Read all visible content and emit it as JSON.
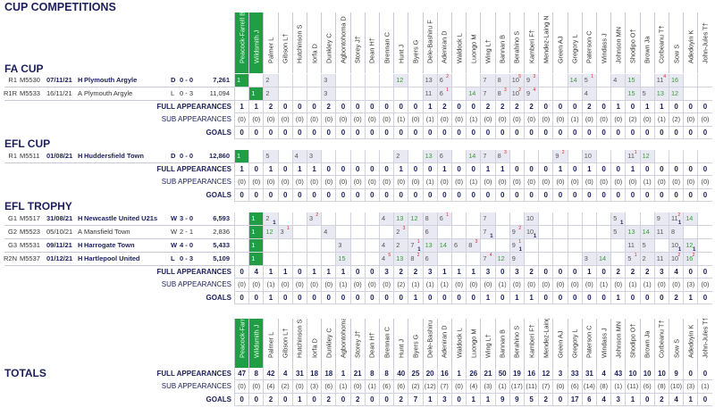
{
  "title": "CUP COMPETITIONS",
  "colors": {
    "navy": "#1c1f5c",
    "keeper_green": "#1f9e46",
    "sub_green": "#3a9a3a",
    "note_red": "#d22222",
    "cell_fill": "#e9e9f3"
  },
  "row_labels": {
    "full": "FULL APPEARANCES",
    "sub": "SUB APPEARANCES",
    "goals": "GOALS"
  },
  "players": [
    "Peacock-Farrell B†",
    "Wildsmith J",
    "Palmer L",
    "Gibson L†",
    "Hutchinson S",
    "Iorfa D",
    "Dunkley C",
    "Agbontohoma D",
    "Storey J†",
    "Dean H†",
    "Brennan C",
    "Hunt J",
    "Byers G",
    "Dele-Bashiru F",
    "Adeniran D",
    "Waldock L",
    "Luongo M",
    "Wing L†",
    "Bannan B",
    "Berahino S",
    "Kamberi F†",
    "Mendez-Laing N",
    "Green AJ",
    "Gregory L",
    "Paterson C",
    "Windass J",
    "Johnson MN",
    "Shodipo O†",
    "Brown Ja",
    "Corbeanu T†",
    "Sow S",
    "Adedoyin K",
    "John-Jules T†"
  ],
  "goalkeepers": [
    "Peacock-Farrell B†",
    "Wildsmith J"
  ],
  "sections": [
    {
      "title": "FA CUP",
      "matches": [
        {
          "round": "R1",
          "code": "M5530",
          "date": "07/11/21",
          "venue": "H",
          "opponent": "Plymouth Argyle",
          "result": "D",
          "score": "0 - 0",
          "attendance": "7,261",
          "cells": [
            {
              "player": "Peacock-Farrell B†",
              "n": "1"
            },
            {
              "player": "Palmer L",
              "n": "2"
            },
            {
              "player": "Dunkley C",
              "n": "3"
            },
            {
              "player": "Hunt J",
              "n": "12",
              "sub": true
            },
            {
              "player": "Dele-Bashiru F",
              "n": "13"
            },
            {
              "player": "Adeniran D",
              "n": "6",
              "note": "2"
            },
            {
              "player": "Wing L†",
              "n": "7"
            },
            {
              "player": "Bannan B",
              "n": "8"
            },
            {
              "player": "Berahino S",
              "n": "10",
              "note": "5"
            },
            {
              "player": "Kamberi F†",
              "n": "9",
              "note": "3"
            },
            {
              "player": "Gregory L",
              "n": "14",
              "sub": true
            },
            {
              "player": "Paterson C",
              "n": "5",
              "note": "1"
            },
            {
              "player": "Johnson MN",
              "n": "4"
            },
            {
              "player": "Shodipo O†",
              "n": "15",
              "sub": true
            },
            {
              "player": "Corbeanu T†",
              "n": "11",
              "note": "4"
            },
            {
              "player": "Sow S",
              "n": "16",
              "sub": true
            }
          ]
        },
        {
          "round": "R1R",
          "code": "M5533",
          "date": "16/11/21",
          "venue": "A",
          "opponent": "Plymouth Argyle",
          "result": "L",
          "score": "0 - 3",
          "attendance": "11,094",
          "cells": [
            {
              "player": "Wildsmith J",
              "n": "1"
            },
            {
              "player": "Palmer L",
              "n": "2"
            },
            {
              "player": "Dunkley C",
              "n": "3"
            },
            {
              "player": "Dele-Bashiru F",
              "n": "11"
            },
            {
              "player": "Adeniran D",
              "n": "6",
              "note": "1"
            },
            {
              "player": "Luongo M",
              "n": "14",
              "sub": true
            },
            {
              "player": "Wing L†",
              "n": "7"
            },
            {
              "player": "Bannan B",
              "n": "8",
              "note": "3"
            },
            {
              "player": "Berahino S",
              "n": "10",
              "note": "2"
            },
            {
              "player": "Kamberi F†",
              "n": "9",
              "note": "4"
            },
            {
              "player": "Paterson C",
              "n": "4"
            },
            {
              "player": "Shodipo O†",
              "n": "15",
              "sub": true
            },
            {
              "player": "Brown Ja",
              "n": "5"
            },
            {
              "player": "Corbeanu T†",
              "n": "13",
              "sub": true
            },
            {
              "player": "Sow S",
              "n": "12",
              "sub": true
            }
          ]
        }
      ],
      "full": [
        1,
        1,
        2,
        0,
        0,
        0,
        2,
        0,
        0,
        0,
        0,
        0,
        0,
        1,
        2,
        0,
        0,
        2,
        2,
        2,
        2,
        0,
        0,
        0,
        2,
        0,
        1,
        0,
        1,
        1,
        0,
        0,
        0
      ],
      "sub": [
        0,
        0,
        0,
        0,
        0,
        0,
        0,
        0,
        0,
        0,
        0,
        1,
        0,
        1,
        0,
        0,
        1,
        0,
        0,
        0,
        0,
        0,
        0,
        1,
        0,
        0,
        0,
        2,
        0,
        1,
        2,
        0,
        0
      ],
      "goals": [
        0,
        0,
        0,
        0,
        0,
        0,
        0,
        0,
        0,
        0,
        0,
        0,
        0,
        0,
        0,
        0,
        0,
        0,
        0,
        0,
        0,
        0,
        0,
        0,
        0,
        0,
        0,
        0,
        0,
        0,
        0,
        0,
        0
      ]
    },
    {
      "title": "EFL CUP",
      "matches": [
        {
          "round": "R1",
          "code": "M5511",
          "date": "01/08/21",
          "venue": "H",
          "opponent": "Huddersfield Town",
          "result": "D",
          "score": "0 - 0",
          "attendance": "12,860",
          "cells": [
            {
              "player": "Peacock-Farrell B†",
              "n": "1"
            },
            {
              "player": "Palmer L",
              "n": "5"
            },
            {
              "player": "Hutchinson S",
              "n": "4"
            },
            {
              "player": "Iorfa D",
              "n": "3"
            },
            {
              "player": "Hunt J",
              "n": "2"
            },
            {
              "player": "Dele-Bashiru F",
              "n": "13",
              "sub": true
            },
            {
              "player": "Adeniran D",
              "n": "6"
            },
            {
              "player": "Luongo M",
              "n": "14",
              "sub": true
            },
            {
              "player": "Wing L†",
              "n": "7"
            },
            {
              "player": "Bannan B",
              "n": "8",
              "note": "3"
            },
            {
              "player": "Green AJ",
              "n": "9",
              "note": "2"
            },
            {
              "player": "Paterson C",
              "n": "10"
            },
            {
              "player": "Shodipo O†",
              "n": "11",
              "note": "1"
            },
            {
              "player": "Brown Ja",
              "n": "12",
              "sub": true
            }
          ]
        }
      ],
      "full": [
        1,
        0,
        1,
        0,
        1,
        1,
        0,
        0,
        0,
        0,
        0,
        1,
        0,
        0,
        1,
        0,
        0,
        1,
        1,
        0,
        0,
        0,
        1,
        0,
        1,
        0,
        0,
        1,
        0,
        0,
        0,
        0,
        0
      ],
      "sub": [
        0,
        0,
        0,
        0,
        0,
        0,
        0,
        0,
        0,
        0,
        0,
        0,
        0,
        1,
        0,
        0,
        1,
        0,
        0,
        0,
        0,
        0,
        0,
        0,
        0,
        0,
        0,
        0,
        1,
        0,
        0,
        0,
        0
      ],
      "goals": [
        0,
        0,
        0,
        0,
        0,
        0,
        0,
        0,
        0,
        0,
        0,
        0,
        0,
        0,
        0,
        0,
        0,
        0,
        0,
        0,
        0,
        0,
        0,
        0,
        0,
        0,
        0,
        0,
        0,
        0,
        0,
        0,
        0
      ]
    },
    {
      "title": "EFL TROPHY",
      "matches": [
        {
          "round": "G1",
          "code": "M5517",
          "date": "31/08/21",
          "venue": "H",
          "opponent": "Newcastle United U21s",
          "result": "W",
          "score": "3 - 0",
          "attendance": "6,593",
          "cells": [
            {
              "player": "Wildsmith J",
              "n": "1"
            },
            {
              "player": "Palmer L",
              "n": "2",
              "goals": "1"
            },
            {
              "player": "Iorfa D",
              "n": "3",
              "note": "2"
            },
            {
              "player": "Brennan C",
              "n": "4"
            },
            {
              "player": "Hunt J",
              "n": "13",
              "sub": true
            },
            {
              "player": "Byers G",
              "n": "12",
              "sub": true
            },
            {
              "player": "Dele-Bashiru F",
              "n": "8"
            },
            {
              "player": "Adeniran D",
              "n": "6",
              "note": "1"
            },
            {
              "player": "Wing L†",
              "n": "7"
            },
            {
              "player": "Kamberi F†",
              "n": "10"
            },
            {
              "player": "Johnson MN",
              "n": "5",
              "goals": "1"
            },
            {
              "player": "Corbeanu T†",
              "n": "9"
            },
            {
              "player": "Sow S",
              "n": "11",
              "note": "2",
              "goals": "1"
            },
            {
              "player": "Adedoyin K",
              "n": "14",
              "sub": true
            }
          ]
        },
        {
          "round": "G2",
          "code": "M5523",
          "date": "05/10/21",
          "venue": "A",
          "opponent": "Mansfield Town",
          "result": "W",
          "score": "2 - 1",
          "attendance": "2,836",
          "cells": [
            {
              "player": "Wildsmith J",
              "n": "1"
            },
            {
              "player": "Palmer L",
              "n": "12",
              "sub": true
            },
            {
              "player": "Gibson L†",
              "n": "3",
              "note": "1"
            },
            {
              "player": "Dunkley C",
              "n": "4"
            },
            {
              "player": "Hunt J",
              "n": "2",
              "note": "3"
            },
            {
              "player": "Dele-Bashiru F",
              "n": "6"
            },
            {
              "player": "Wing L†",
              "n": "7",
              "goals": "1"
            },
            {
              "player": "Berahino S",
              "n": "9",
              "note": "2"
            },
            {
              "player": "Kamberi F†",
              "n": "10",
              "goals": "1"
            },
            {
              "player": "Johnson MN",
              "n": "5"
            },
            {
              "player": "Shodipo O†",
              "n": "13",
              "sub": true
            },
            {
              "player": "Brown Ja",
              "n": "14",
              "sub": true
            },
            {
              "player": "Corbeanu T†",
              "n": "11"
            },
            {
              "player": "Sow S",
              "n": "8"
            }
          ]
        },
        {
          "round": "G3",
          "code": "M5531",
          "date": "09/11/21",
          "venue": "H",
          "opponent": "Harrogate Town",
          "result": "W",
          "score": "4 - 0",
          "attendance": "5,433",
          "cells": [
            {
              "player": "Wildsmith J",
              "n": "1"
            },
            {
              "player": "Agbontohoma D",
              "n": "3"
            },
            {
              "player": "Brennan C",
              "n": "4"
            },
            {
              "player": "Hunt J",
              "n": "2"
            },
            {
              "player": "Byers G",
              "n": "7",
              "note": "1",
              "goals": "1"
            },
            {
              "player": "Dele-Bashiru F",
              "n": "13",
              "sub": true
            },
            {
              "player": "Adeniran D",
              "n": "14",
              "sub": true
            },
            {
              "player": "Waldock L",
              "n": "6"
            },
            {
              "player": "Luongo M",
              "n": "8",
              "note": "3"
            },
            {
              "player": "Berahino S",
              "n": "9",
              "note": "1",
              "goals": "1"
            },
            {
              "player": "Shodipo O†",
              "n": "11"
            },
            {
              "player": "Brown Ja",
              "n": "5"
            },
            {
              "player": "Sow S",
              "n": "10",
              "goals": "1"
            },
            {
              "player": "Adedoyin K",
              "n": "12",
              "sub": true,
              "goals": "1"
            }
          ]
        },
        {
          "round": "R2N",
          "code": "M5537",
          "date": "01/12/21",
          "venue": "H",
          "opponent": "Hartlepool United",
          "result": "L",
          "score": "0 - 3",
          "attendance": "5,109",
          "cells": [
            {
              "player": "Wildsmith J",
              "n": "1"
            },
            {
              "player": "Agbontohoma D",
              "n": "15",
              "sub": true
            },
            {
              "player": "Brennan C",
              "n": "4",
              "note": "5"
            },
            {
              "player": "Hunt J",
              "n": "13",
              "sub": true
            },
            {
              "player": "Byers G",
              "n": "8",
              "note": "2"
            },
            {
              "player": "Dele-Bashiru F",
              "n": "6"
            },
            {
              "player": "Wing L†",
              "n": "7",
              "note": "4"
            },
            {
              "player": "Bannan B",
              "n": "12",
              "sub": true
            },
            {
              "player": "Berahino S",
              "n": "9"
            },
            {
              "player": "Paterson C",
              "n": "3"
            },
            {
              "player": "Windass J",
              "n": "14",
              "sub": true
            },
            {
              "player": "Shodipo O†",
              "n": "5",
              "note": "1"
            },
            {
              "player": "Brown Ja",
              "n": "2"
            },
            {
              "player": "Corbeanu T†",
              "n": "11"
            },
            {
              "player": "Sow S",
              "n": "10",
              "note": "2"
            },
            {
              "player": "Adedoyin K",
              "n": "16",
              "note": "2",
              "sub": true
            }
          ]
        }
      ],
      "full": [
        0,
        4,
        1,
        1,
        0,
        1,
        1,
        1,
        0,
        0,
        3,
        2,
        2,
        3,
        1,
        1,
        1,
        3,
        0,
        3,
        2,
        0,
        0,
        0,
        1,
        0,
        2,
        2,
        2,
        3,
        4,
        0,
        0
      ],
      "sub": [
        0,
        0,
        1,
        0,
        0,
        0,
        0,
        1,
        0,
        0,
        0,
        2,
        1,
        1,
        1,
        0,
        0,
        0,
        1,
        0,
        0,
        0,
        0,
        0,
        0,
        1,
        0,
        1,
        1,
        0,
        0,
        3,
        0
      ],
      "goals": [
        0,
        0,
        1,
        0,
        0,
        0,
        0,
        0,
        0,
        0,
        0,
        0,
        1,
        0,
        0,
        0,
        0,
        1,
        0,
        1,
        1,
        0,
        0,
        0,
        0,
        0,
        1,
        0,
        0,
        0,
        2,
        1,
        0
      ]
    }
  ],
  "totals": {
    "title": "TOTALS",
    "full": [
      47,
      8,
      42,
      4,
      31,
      18,
      18,
      1,
      21,
      8,
      8,
      40,
      25,
      20,
      16,
      1,
      26,
      21,
      50,
      19,
      16,
      12,
      3,
      33,
      31,
      4,
      43,
      10,
      10,
      10,
      9,
      0,
      0
    ],
    "sub": [
      0,
      0,
      4,
      2,
      0,
      3,
      6,
      1,
      0,
      1,
      6,
      6,
      2,
      12,
      7,
      0,
      4,
      3,
      1,
      17,
      11,
      7,
      0,
      6,
      14,
      8,
      1,
      11,
      6,
      8,
      10,
      3,
      1
    ],
    "goals": [
      0,
      0,
      2,
      0,
      1,
      0,
      2,
      0,
      2,
      0,
      0,
      2,
      7,
      1,
      3,
      0,
      1,
      1,
      9,
      9,
      5,
      2,
      0,
      17,
      6,
      4,
      3,
      1,
      0,
      2,
      4,
      1,
      0
    ]
  }
}
